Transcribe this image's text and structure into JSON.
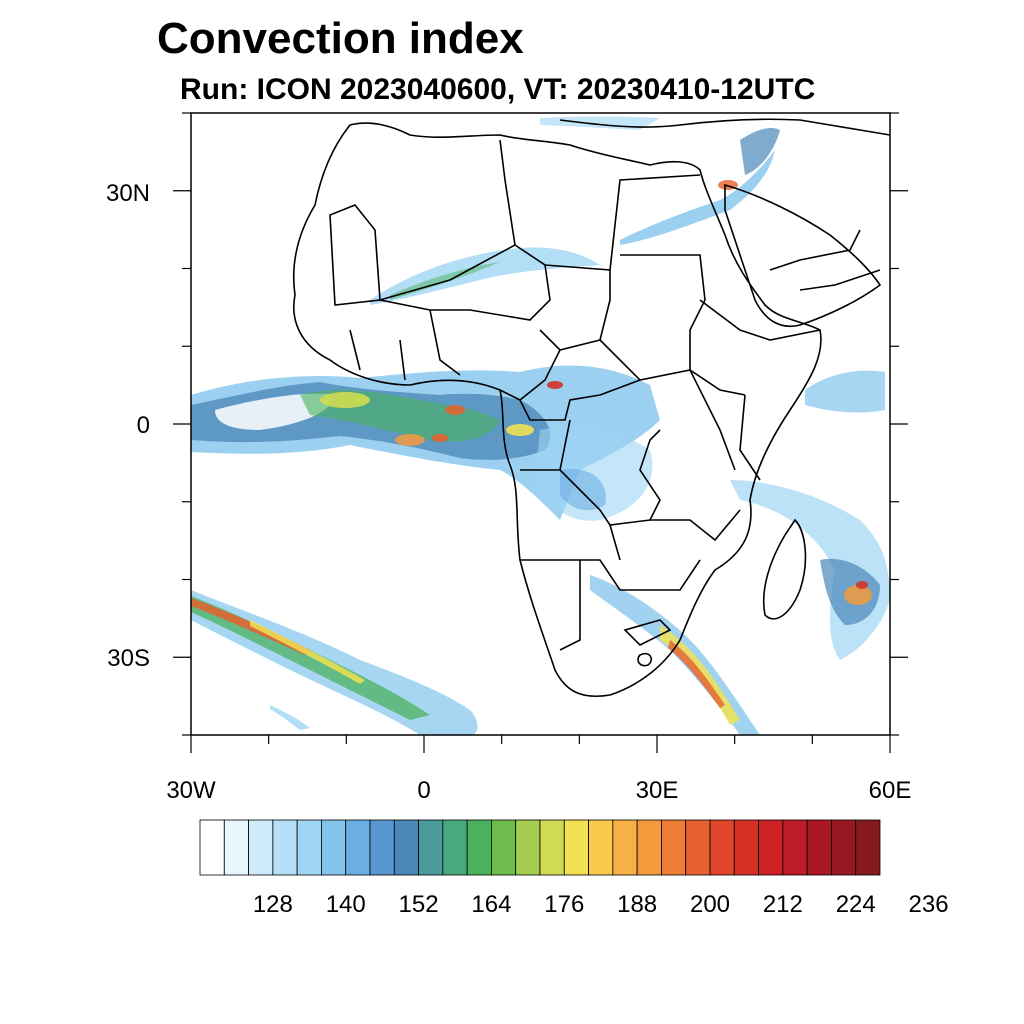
{
  "header": {
    "title": "Convection index",
    "subtitle": "Run: ICON 2023040600,  VT: 20230410-12UTC"
  },
  "map": {
    "projection": "cylindrical-equidistant",
    "lon_range": [
      -30,
      60
    ],
    "lat_range": [
      -40,
      40
    ],
    "lat_labels": [
      "30N",
      "0",
      "30S"
    ],
    "lat_label_values": [
      30,
      0,
      -30
    ],
    "lon_labels": [
      "30W",
      "0",
      "30E",
      "60E"
    ],
    "lon_label_values": [
      -30,
      0,
      30,
      60
    ],
    "border_color": "#000000",
    "background": "#ffffff"
  },
  "colorbar": {
    "colors": [
      "#ffffff",
      "#eaf6fd",
      "#cfeafa",
      "#b5e0f7",
      "#9fd6f4",
      "#82c4ec",
      "#6aaee3",
      "#5697d2",
      "#4a87b8",
      "#4a9b9a",
      "#4aa87e",
      "#4ab25c",
      "#6ebd4c",
      "#a5cc4e",
      "#cfdb52",
      "#f1e153",
      "#f8c94d",
      "#f6b044",
      "#f39a3d",
      "#ee7c36",
      "#e8602e",
      "#df4528",
      "#d63025",
      "#cc2226",
      "#bd1b26",
      "#ab1823",
      "#981720",
      "#841a1d"
    ],
    "labels": [
      "128",
      "140",
      "152",
      "164",
      "176",
      "188",
      "200",
      "212",
      "224",
      "236"
    ]
  }
}
